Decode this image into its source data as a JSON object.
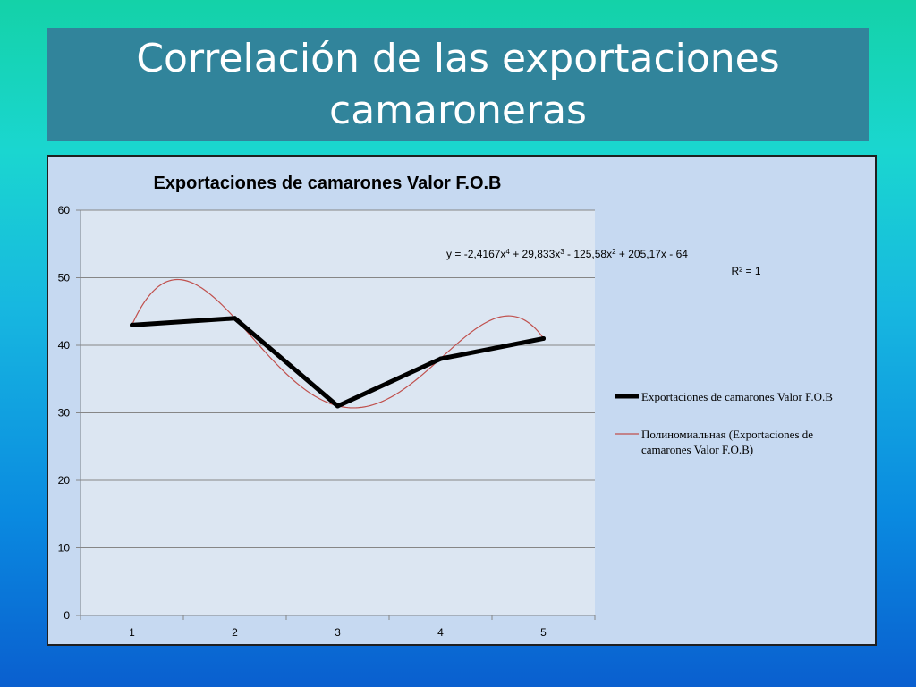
{
  "slide": {
    "title_line1": "Correlación de las exportaciones",
    "title_line2": "camaroneras"
  },
  "chart_data": {
    "type": "line",
    "title": "Exportaciones de camarones Valor F.O.B",
    "x": [
      1,
      2,
      3,
      4,
      5
    ],
    "categories": [
      "1",
      "2",
      "3",
      "4",
      "5"
    ],
    "series": [
      {
        "name": "Exportaciones de camarones Valor F.O.B",
        "values": [
          43,
          44,
          31,
          38,
          41
        ],
        "color": "#000000"
      }
    ],
    "trendline": {
      "name_line1": "Полиномиальная (Exportaciones de",
      "name_line2": "camarones Valor F.O.B)",
      "type": "polynomial",
      "order": 4,
      "coefficients": [
        -2.4167,
        29.833,
        -125.58,
        205.17,
        -64
      ],
      "equation_parts": [
        "y = -2,4167x",
        "4",
        " + 29,833x",
        "3",
        " - 125,58x",
        "2",
        " + 205,17x - 64"
      ],
      "r2_label": "R² = 1",
      "color": "#c0504d"
    },
    "ylim": [
      0,
      60
    ],
    "yticks": [
      "0",
      "10",
      "20",
      "30",
      "40",
      "50",
      "60"
    ],
    "grid": true,
    "legend": "right"
  }
}
